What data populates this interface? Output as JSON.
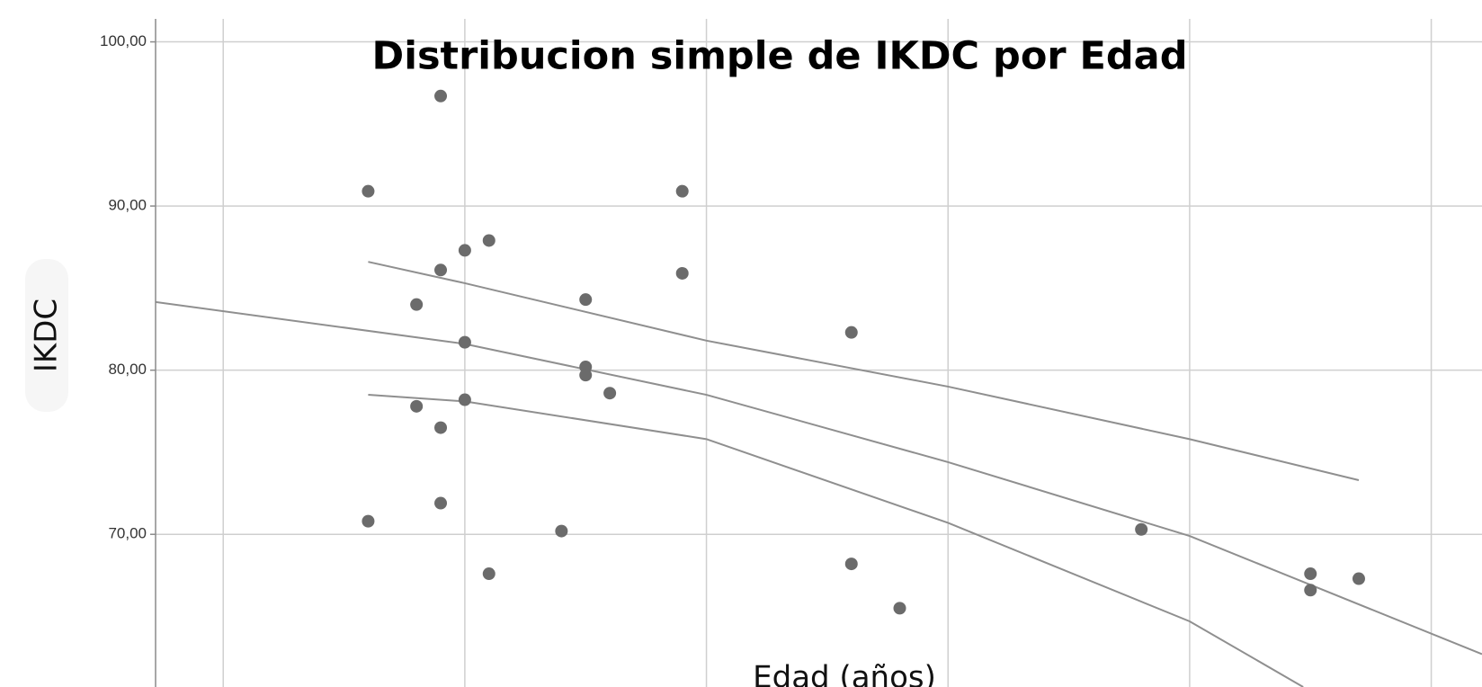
{
  "chart_data": {
    "type": "scatter",
    "title": "Distribucion simple de IKDC por Edad",
    "xlabel": "Edad (años)",
    "ylabel": "IKDC",
    "xlim": [
      7.2,
      62.1
    ],
    "ylim": [
      60.7,
      101.4
    ],
    "xticks": [
      10,
      20,
      30,
      40,
      50,
      60
    ],
    "yticks": [
      {
        "value": 70,
        "label": "70,00"
      },
      {
        "value": 80,
        "label": "80,00"
      },
      {
        "value": 90,
        "label": "90,00"
      },
      {
        "value": 100,
        "label": "100,00"
      }
    ],
    "grid": true,
    "color": "#6b6b6b",
    "x": [
      16,
      16,
      18,
      18,
      19,
      19,
      19,
      19,
      20,
      20,
      20,
      21,
      21,
      24,
      25,
      25,
      25,
      26,
      29,
      29,
      36,
      36,
      38,
      48,
      55,
      55,
      57
    ],
    "y": [
      90.9,
      70.8,
      84.0,
      77.8,
      96.7,
      86.1,
      76.5,
      71.9,
      87.3,
      81.7,
      78.2,
      87.9,
      67.6,
      70.2,
      84.3,
      80.2,
      79.7,
      78.6,
      90.9,
      85.9,
      82.3,
      68.2,
      65.5,
      70.3,
      67.6,
      66.6,
      67.3
    ],
    "line_color": "#8f8f8f",
    "lines": [
      {
        "x": [
          7.2,
          20,
          30,
          40,
          50,
          62.1
        ],
        "y": [
          84.15,
          81.6,
          78.5,
          74.4,
          69.9,
          62.7
        ]
      },
      {
        "x": [
          16,
          20,
          30,
          40,
          50,
          57
        ],
        "y": [
          86.6,
          85.3,
          81.8,
          79.0,
          75.8,
          73.3
        ]
      },
      {
        "x": [
          16,
          20,
          30,
          40,
          50,
          54.7
        ],
        "y": [
          78.5,
          78.1,
          75.8,
          70.7,
          64.7,
          60.7
        ]
      }
    ]
  }
}
